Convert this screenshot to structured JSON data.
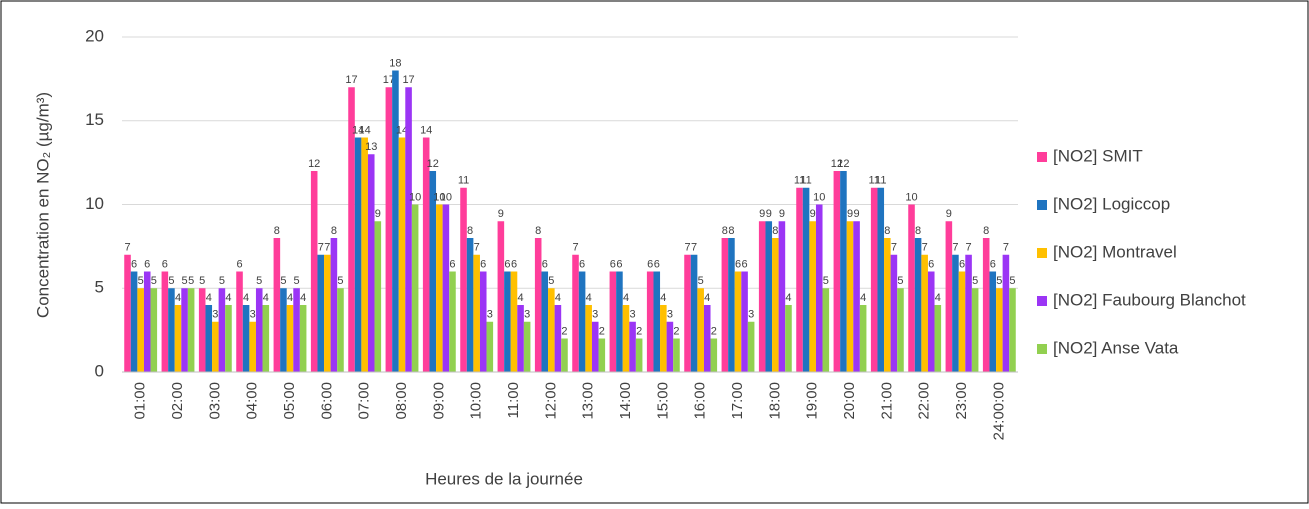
{
  "chart_data": {
    "type": "bar",
    "y_label": "Concentration en NO₂ (µg/m³)",
    "x_label": "Heures de la journée",
    "categories": [
      "01:00",
      "02:00",
      "03:00",
      "04:00",
      "05:00",
      "06:00",
      "07:00",
      "08:00",
      "09:00",
      "10:00",
      "11:00",
      "12:00",
      "13:00",
      "14:00",
      "15:00",
      "16:00",
      "17:00",
      "18:00",
      "19:00",
      "20:00",
      "21:00",
      "22:00",
      "23:00",
      "24:00:00"
    ],
    "series": [
      {
        "name": "[NO2] SMIT",
        "color": "#ff3d9a",
        "values": [
          7,
          6,
          5,
          6,
          8,
          12,
          17,
          17,
          14,
          11,
          9,
          8,
          7,
          6,
          6,
          7,
          8,
          9,
          11,
          12,
          11,
          10,
          9,
          8
        ]
      },
      {
        "name": "[NO2] Logiccop",
        "color": "#1f74c0",
        "values": [
          6,
          5,
          4,
          4,
          5,
          7,
          14,
          18,
          12,
          8,
          6,
          6,
          6,
          6,
          6,
          7,
          8,
          9,
          11,
          12,
          11,
          8,
          7,
          6
        ]
      },
      {
        "name": "[NO2] Montravel",
        "color": "#ffc000",
        "values": [
          5,
          4,
          3,
          3,
          4,
          7,
          14,
          14,
          10,
          7,
          6,
          5,
          4,
          4,
          4,
          5,
          6,
          8,
          9,
          9,
          8,
          7,
          6,
          5
        ]
      },
      {
        "name": "[NO2] Faubourg Blanchot",
        "color": "#9b35f5",
        "values": [
          6,
          5,
          5,
          5,
          5,
          8,
          13,
          17,
          10,
          6,
          4,
          4,
          3,
          3,
          3,
          4,
          6,
          9,
          10,
          9,
          7,
          6,
          7,
          7
        ]
      },
      {
        "name": "[NO2] Anse Vata",
        "color": "#92d050",
        "values": [
          5,
          5,
          4,
          4,
          4,
          5,
          9,
          10,
          6,
          3,
          3,
          2,
          2,
          2,
          2,
          2,
          3,
          4,
          5,
          4,
          5,
          4,
          5,
          5
        ]
      }
    ],
    "ylim": [
      0,
      20
    ],
    "yticks": [
      0,
      5,
      10,
      15,
      20
    ],
    "grid": true,
    "legend": "right"
  }
}
